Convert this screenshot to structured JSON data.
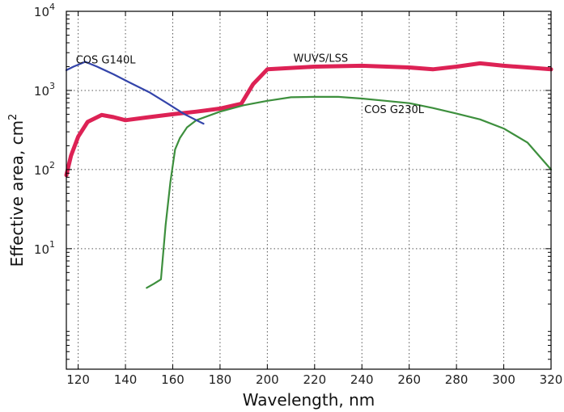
{
  "chart_data": {
    "type": "line",
    "title": "",
    "xlabel": "Wavelength, nm",
    "ylabel_text": "Effective area, cm",
    "ylabel_sup": "2",
    "xlim": [
      115,
      320
    ],
    "ylim": [
      0.3,
      10000
    ],
    "yscale": "log",
    "grid": true,
    "x_ticks": [
      {
        "value": 120,
        "label": "120"
      },
      {
        "value": 140,
        "label": "140"
      },
      {
        "value": 160,
        "label": "160"
      },
      {
        "value": 180,
        "label": "180"
      },
      {
        "value": 200,
        "label": "200"
      },
      {
        "value": 220,
        "label": "220"
      },
      {
        "value": 240,
        "label": "240"
      },
      {
        "value": 260,
        "label": "260"
      },
      {
        "value": 280,
        "label": "280"
      },
      {
        "value": 300,
        "label": "300"
      },
      {
        "value": 320,
        "label": "320"
      }
    ],
    "y_ticks": [
      {
        "value": 10,
        "base": "10",
        "exp": "1"
      },
      {
        "value": 100,
        "base": "10",
        "exp": "2"
      },
      {
        "value": 1000,
        "base": "10",
        "exp": "3"
      },
      {
        "value": 10000,
        "base": "10",
        "exp": "4"
      }
    ],
    "series": [
      {
        "name": "COS G140L",
        "color": "#3344aa",
        "label_at": {
          "x": 119,
          "y": 2200
        },
        "x": [
          115,
          118,
          123,
          128,
          135,
          142,
          150,
          158,
          165,
          170,
          173
        ],
        "y": [
          1800,
          2000,
          2300,
          2000,
          1600,
          1250,
          950,
          680,
          500,
          420,
          380
        ]
      },
      {
        "name": "WUVS/LSS",
        "color": "#dd2255",
        "label_at": {
          "x": 211,
          "y": 2300
        },
        "x": [
          115,
          117,
          120,
          124,
          130,
          135,
          140,
          150,
          160,
          170,
          180,
          189,
          194,
          200,
          220,
          240,
          260,
          270,
          280,
          290,
          300,
          310,
          320
        ],
        "y": [
          85,
          150,
          260,
          400,
          490,
          460,
          420,
          460,
          500,
          540,
          590,
          680,
          1200,
          1850,
          2000,
          2050,
          1950,
          1850,
          2000,
          2200,
          2050,
          1950,
          1850
        ]
      },
      {
        "name": "COS G230L",
        "color": "#3d8f3d",
        "label_at": {
          "x": 241,
          "y": 520
        },
        "x": [
          149,
          152,
          155,
          157,
          159,
          161,
          163,
          166,
          170,
          180,
          190,
          200,
          210,
          220,
          230,
          240,
          250,
          260,
          270,
          280,
          290,
          300,
          310,
          320
        ],
        "y": [
          3.2,
          3.6,
          4.1,
          20,
          70,
          180,
          250,
          340,
          420,
          540,
          650,
          740,
          820,
          830,
          830,
          790,
          740,
          690,
          600,
          510,
          430,
          330,
          220,
          100
        ]
      }
    ]
  }
}
